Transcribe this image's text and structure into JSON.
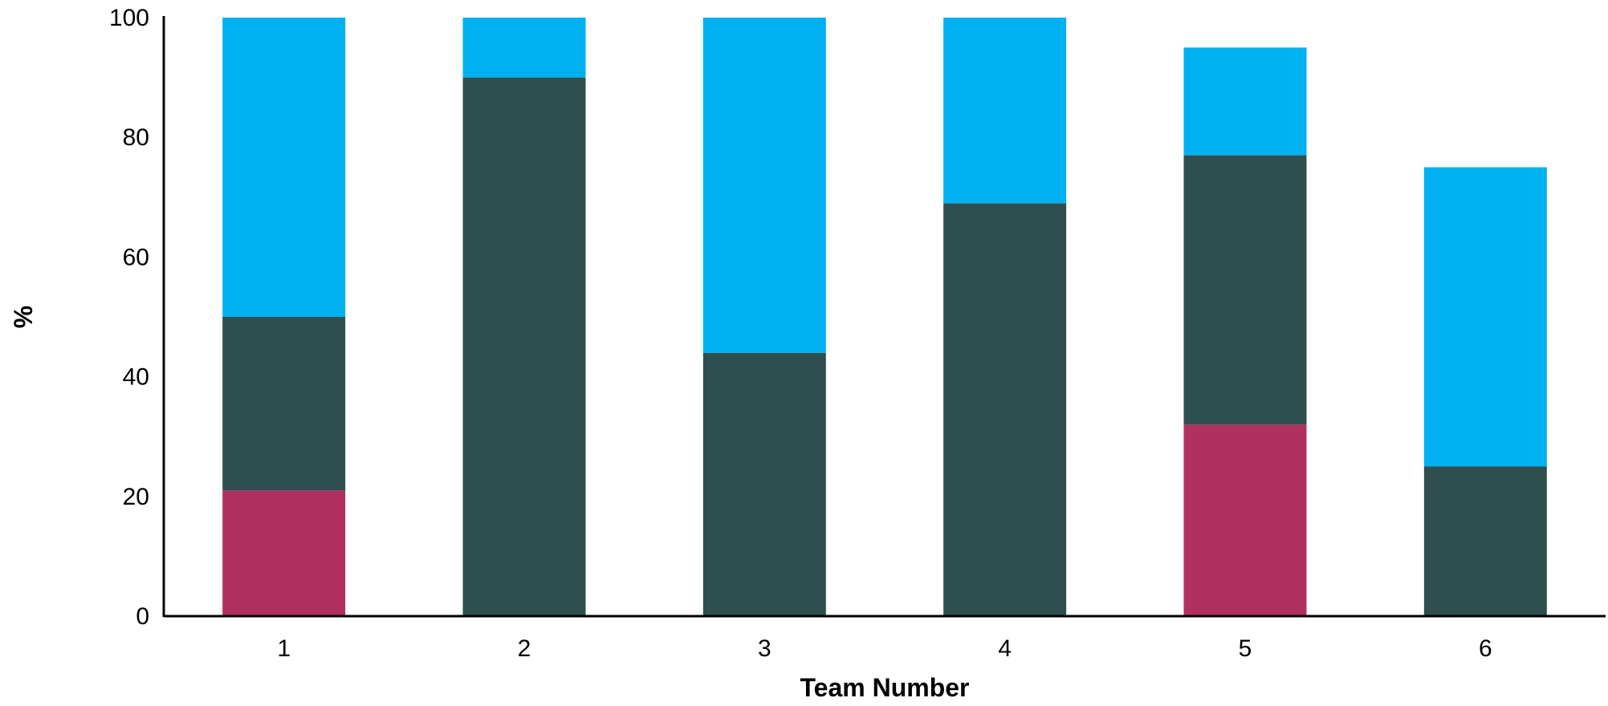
{
  "chart_data": {
    "type": "bar",
    "stacked": true,
    "title": "",
    "xlabel": "Team Number",
    "ylabel": "%",
    "categories": [
      "1",
      "2",
      "3",
      "4",
      "5",
      "6"
    ],
    "ylim": [
      0,
      100
    ],
    "yticks": [
      "0",
      "20",
      "40",
      "60",
      "80",
      "100"
    ],
    "grid": false,
    "legend": "none",
    "series": [
      {
        "color": "#B03060",
        "values": [
          21,
          0,
          0,
          0,
          32,
          0
        ]
      },
      {
        "color": "#2F4F4F",
        "values": [
          29,
          90,
          44,
          69,
          45,
          25
        ]
      },
      {
        "color": "#00B0F0",
        "values": [
          50,
          10,
          56,
          31,
          18,
          50
        ]
      }
    ]
  }
}
